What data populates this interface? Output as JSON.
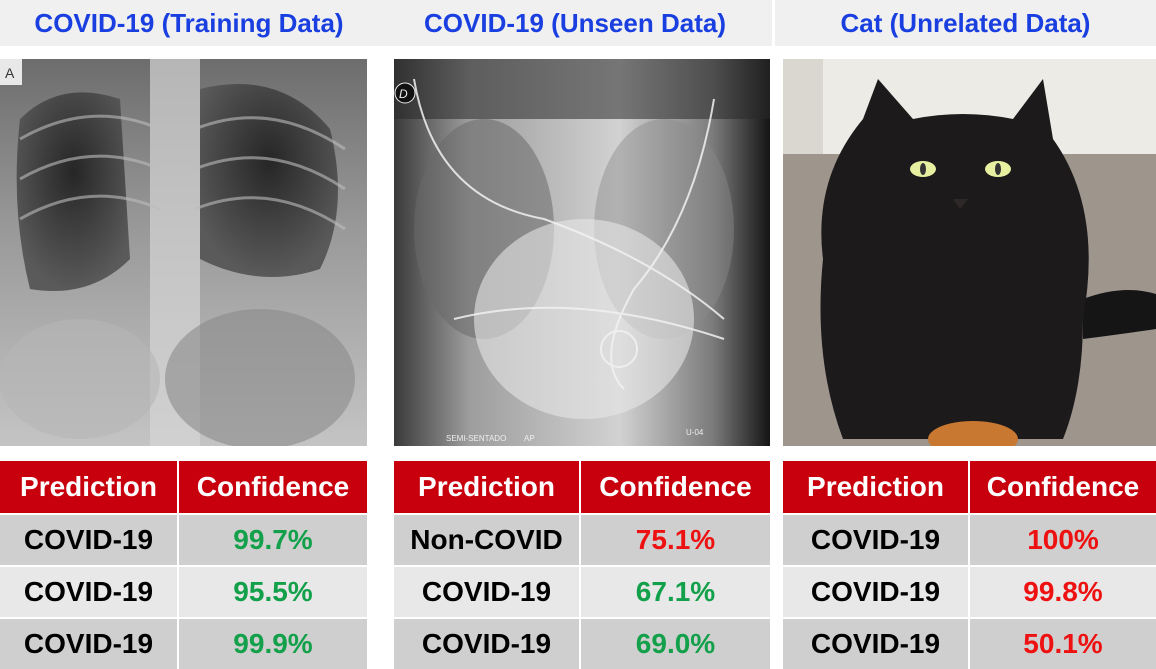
{
  "panels": [
    {
      "title": "COVID-19 (Training Data)",
      "image": {
        "subject": "chest X-ray",
        "marker": "A"
      },
      "headers": {
        "prediction": "Prediction",
        "confidence": "Confidence"
      },
      "rows": [
        {
          "prediction": "COVID-19",
          "confidence": "99.7%",
          "color": "#13a04a"
        },
        {
          "prediction": "COVID-19",
          "confidence": "95.5%",
          "color": "#13a04a"
        },
        {
          "prediction": "COVID-19",
          "confidence": "99.9%",
          "color": "#13a04a"
        }
      ]
    },
    {
      "title": "COVID-19 (Unseen Data)",
      "image": {
        "subject": "chest X-ray",
        "marker": "D",
        "footer_left": "SEMI-SENTADO",
        "footer_mid": "AP",
        "footer_right": "U-04"
      },
      "headers": {
        "prediction": "Prediction",
        "confidence": "Confidence"
      },
      "rows": [
        {
          "prediction": "Non-COVID",
          "confidence": "75.1%",
          "color": "#ee1111"
        },
        {
          "prediction": "COVID-19",
          "confidence": "67.1%",
          "color": "#13a04a"
        },
        {
          "prediction": "COVID-19",
          "confidence": "69.0%",
          "color": "#13a04a"
        }
      ]
    },
    {
      "title": "Cat (Unrelated Data)",
      "image": {
        "subject": "black cat photo"
      },
      "headers": {
        "prediction": "Prediction",
        "confidence": "Confidence"
      },
      "rows": [
        {
          "prediction": "COVID-19",
          "confidence": "100%",
          "color": "#ee1111"
        },
        {
          "prediction": "COVID-19",
          "confidence": "99.8%",
          "color": "#ee1111"
        },
        {
          "prediction": "COVID-19",
          "confidence": "50.1%",
          "color": "#ee1111"
        }
      ]
    }
  ],
  "colors": {
    "title": "#1a3fe0",
    "header_bg": "#c8000d",
    "green": "#13a04a",
    "red": "#ee1111"
  }
}
